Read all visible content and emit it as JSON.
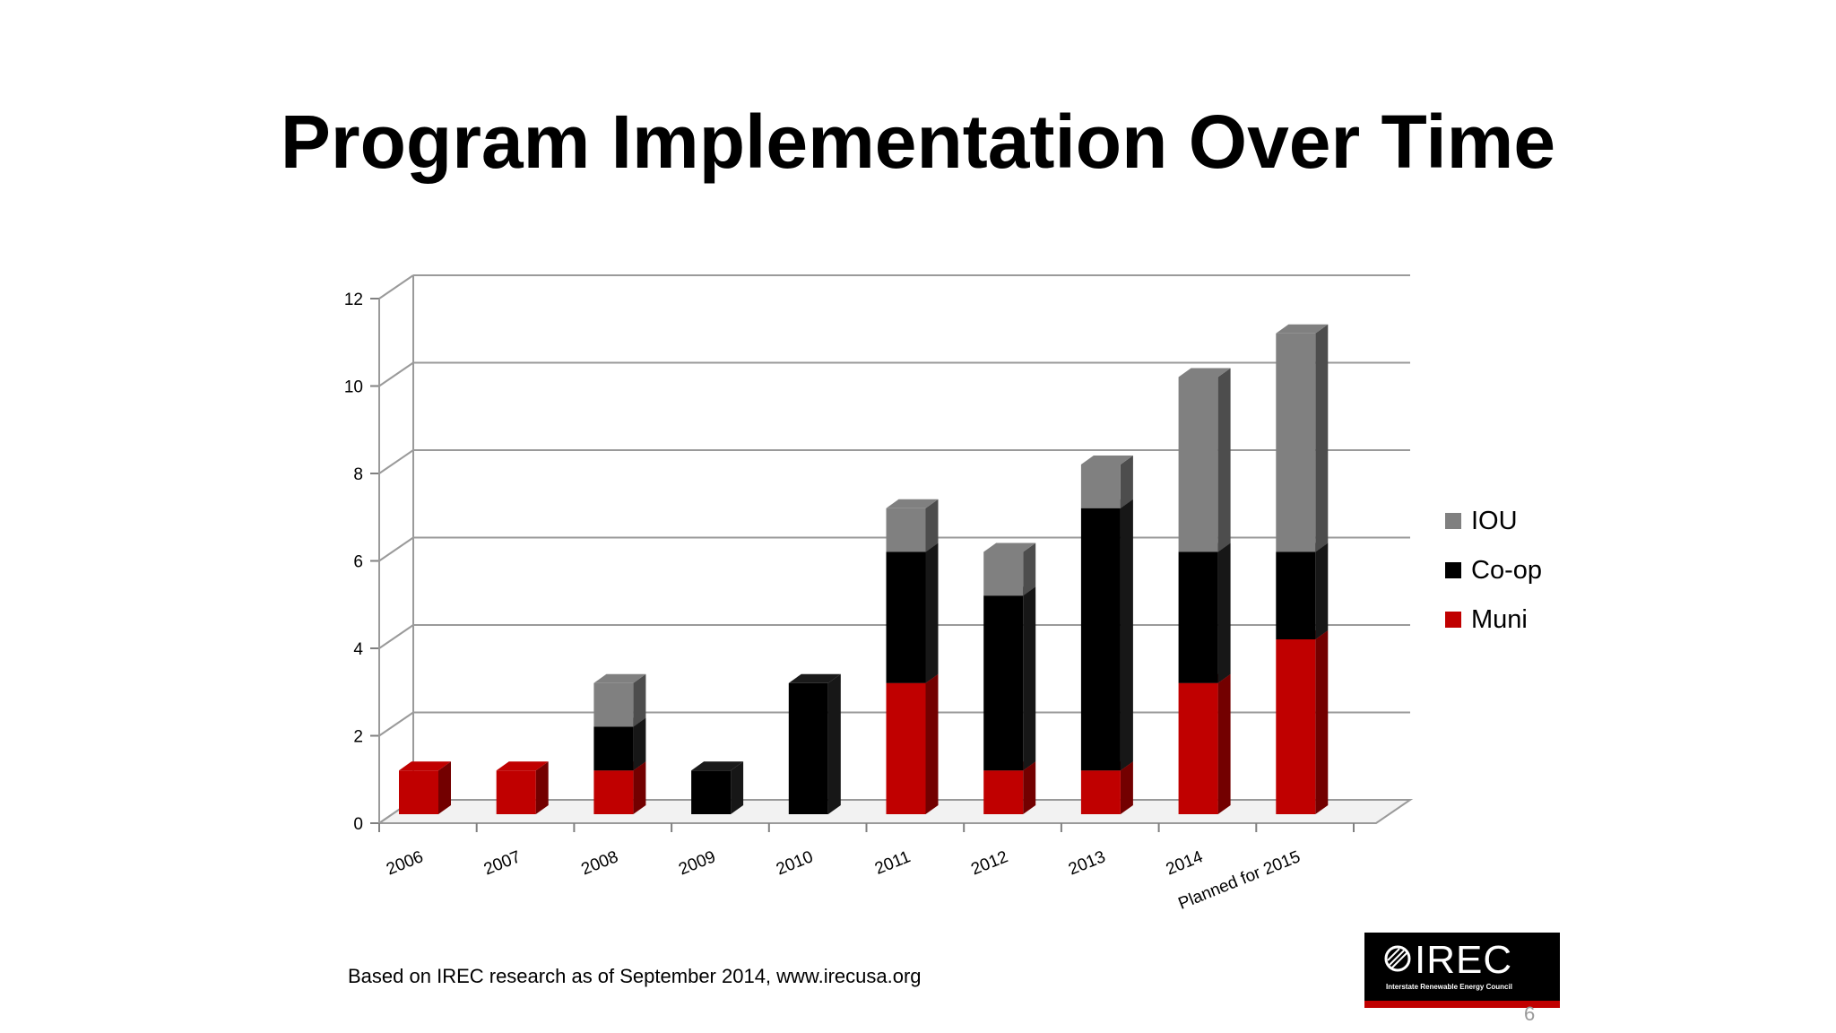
{
  "slide": {
    "title": "Program Implementation Over Time",
    "footnote": "Based on IREC research as of September 2014, www.irecusa.org",
    "page_number": "6"
  },
  "logo": {
    "wordmark": "IREC",
    "tagline": "Interstate Renewable Energy Council"
  },
  "chart_data": {
    "type": "bar",
    "stacked": true,
    "three_d": true,
    "categories": [
      "2006",
      "2007",
      "2008",
      "2009",
      "2010",
      "2011",
      "2012",
      "2013",
      "2014",
      "Planned for 2015"
    ],
    "series": [
      {
        "name": "Muni",
        "color": "#c00000",
        "values": [
          1,
          1,
          1,
          0,
          0,
          3,
          1,
          1,
          3,
          4
        ]
      },
      {
        "name": "Co-op",
        "color": "#000000",
        "values": [
          0,
          0,
          1,
          1,
          3,
          3,
          4,
          6,
          3,
          2
        ]
      },
      {
        "name": "IOU",
        "color": "#808080",
        "values": [
          0,
          0,
          1,
          0,
          0,
          1,
          1,
          1,
          4,
          5
        ]
      }
    ],
    "legend_order": [
      "IOU",
      "Co-op",
      "Muni"
    ],
    "ylim": [
      0,
      12
    ],
    "yticks": [
      0,
      2,
      4,
      6,
      8,
      10,
      12
    ],
    "grid": true,
    "legend_position": "right"
  }
}
